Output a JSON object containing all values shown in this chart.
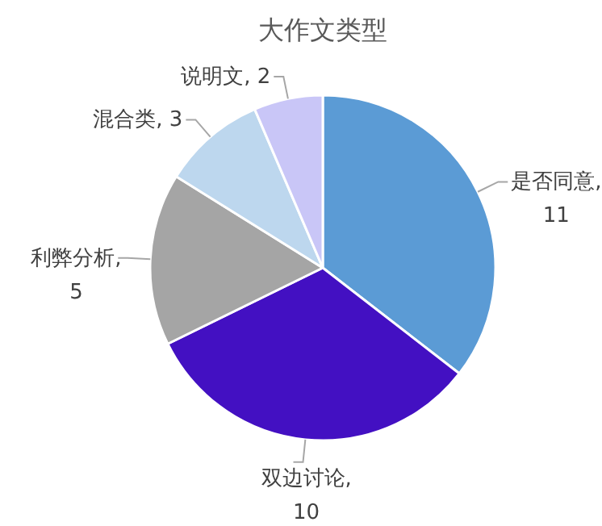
{
  "chart_data": {
    "type": "pie",
    "title": "大作文类型",
    "categories": [
      "是否同意",
      "双边讨论",
      "利弊分析",
      "混合类",
      "说明文"
    ],
    "values": [
      11,
      10,
      5,
      3,
      2
    ],
    "colors": [
      "#5b9bd5",
      "#4310c2",
      "#a5a5a5",
      "#bdd7ee",
      "#c9c6f7"
    ],
    "value_labels": [
      ", 11",
      ", 10",
      ", 5",
      ", 3",
      ", 2"
    ]
  }
}
